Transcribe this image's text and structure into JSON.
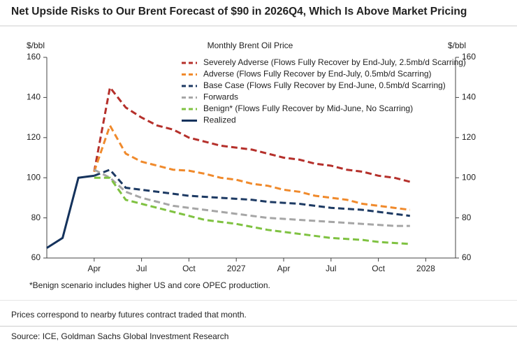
{
  "header": {
    "title": "Net Upside Risks to Our Brent Forecast of $90 in 2026Q4, Which Is Above Market Pricing"
  },
  "chart_data": {
    "type": "line",
    "title": "Monthly Brent Oil Price",
    "y_label": "$/bbl",
    "y2_label": "$/bbl",
    "footnote": "*Benign scenario includes higher US and core OPEC production.",
    "categories": [
      null,
      null,
      null,
      "Apr",
      null,
      null,
      "Jul",
      null,
      null,
      "Oct",
      null,
      null,
      "2027",
      null,
      null,
      "Apr",
      null,
      null,
      "Jul",
      null,
      null,
      "Oct",
      null,
      null,
      "2028"
    ],
    "ylim": [
      60,
      160
    ],
    "yticks": [
      60,
      80,
      100,
      120,
      140,
      160
    ],
    "y2lim": [
      60,
      160
    ],
    "y2ticks": [
      60,
      80,
      100,
      120,
      140,
      160
    ],
    "series": [
      {
        "name": "Severely Adverse (Flows Fully Recover by End-July, 2.5mb/d Scarring)",
        "color": "#b5302b",
        "dash": true,
        "values": [
          null,
          null,
          null,
          103,
          145,
          135,
          130,
          126,
          124,
          120,
          118,
          116,
          115,
          114,
          112,
          110,
          109,
          107,
          106,
          104,
          103,
          101,
          100,
          98,
          null
        ]
      },
      {
        "name": "Adverse (Flows Fully Recover by End-July, 0.5mb/d Scarring)",
        "color": "#f08a2c",
        "dash": true,
        "values": [
          null,
          null,
          null,
          103,
          126,
          112,
          108,
          106,
          104,
          103.5,
          102,
          100,
          99,
          97,
          96,
          94,
          93,
          91,
          90,
          89,
          87,
          86,
          85,
          84,
          null
        ]
      },
      {
        "name": "Base Case (Flows Fully Recover by End-June, 0.5mb/d Scarring)",
        "color": "#1d3a63",
        "dash": true,
        "values": [
          null,
          null,
          null,
          101,
          104,
          95,
          94,
          93,
          92,
          91,
          90.5,
          90,
          89.5,
          89,
          88,
          87.5,
          87,
          86,
          85,
          84.5,
          84,
          83,
          82,
          81,
          null
        ]
      },
      {
        "name": "Forwards",
        "color": "#a6a6a6",
        "dash": true,
        "values": [
          null,
          null,
          null,
          104,
          100,
          93,
          90,
          88,
          86,
          85,
          84,
          83,
          82,
          81,
          80,
          79.5,
          79,
          78.5,
          78,
          77.5,
          77,
          76.5,
          76,
          76,
          null
        ]
      },
      {
        "name": "Benign* (Flows Fully Recover by Mid-June, No Scarring)",
        "color": "#7fc241",
        "dash": true,
        "values": [
          null,
          null,
          null,
          100,
          100,
          89,
          87,
          85,
          83,
          81,
          79,
          78,
          77,
          75.5,
          74,
          73,
          72,
          71,
          70,
          69.5,
          69,
          68,
          67.5,
          67,
          null
        ]
      },
      {
        "name": "Realized",
        "color": "#14325c",
        "dash": false,
        "values": [
          65,
          70,
          100,
          101,
          null,
          null,
          null,
          null,
          null,
          null,
          null,
          null,
          null,
          null,
          null,
          null,
          null,
          null,
          null,
          null,
          null,
          null,
          null,
          null,
          null
        ]
      }
    ]
  },
  "notes": {
    "text": "Prices correspond to nearby futures contract traded that month.",
    "source": "Source: ICE, Goldman Sachs Global Investment Research"
  }
}
